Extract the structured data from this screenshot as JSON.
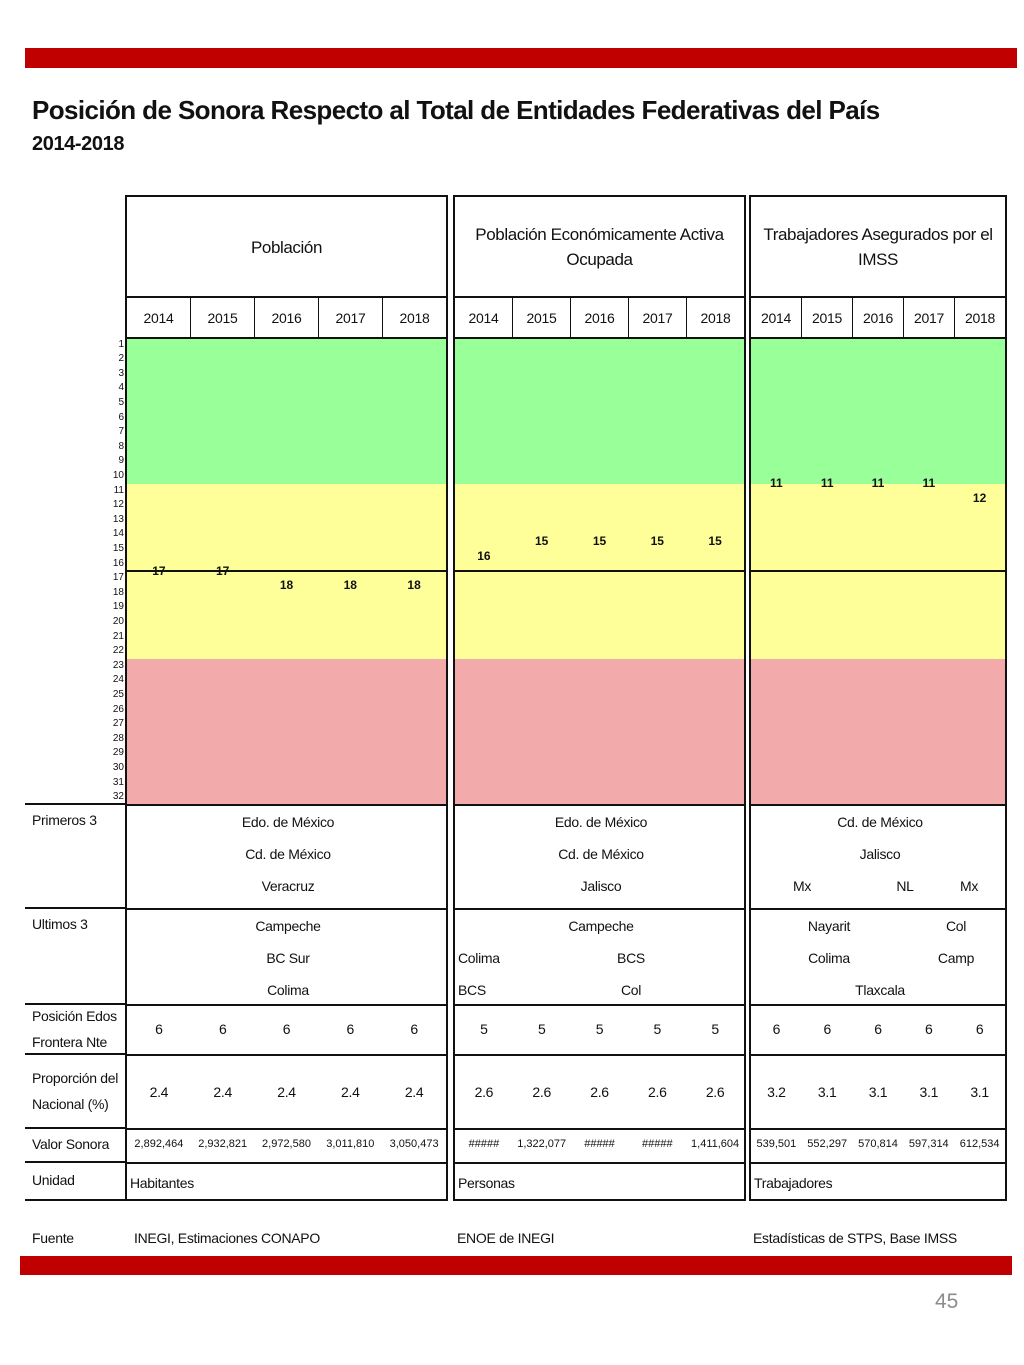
{
  "page": {
    "title": "Posición de Sonora Respecto al Total de Entidades Federativas del País",
    "subtitle": "2014-2018",
    "page_number": "45",
    "colors": {
      "brand_bar": "#c00000",
      "top_band": "#99ff99",
      "middle_band": "#ffff99",
      "bottom_band": "#f2aaaa"
    }
  },
  "ranks": [
    "1",
    "2",
    "3",
    "4",
    "5",
    "6",
    "7",
    "8",
    "9",
    "10",
    "11",
    "12",
    "13",
    "14",
    "15",
    "16",
    "17",
    "18",
    "19",
    "20",
    "21",
    "22",
    "23",
    "24",
    "25",
    "26",
    "27",
    "28",
    "29",
    "30",
    "31",
    "32"
  ],
  "row_labels": {
    "primeros": "Primeros 3",
    "ultimos": "Ultimos 3",
    "posicion_line1": "Posición Edos",
    "posicion_line2": "Frontera Nte",
    "proporcion_line1": "Proporción del",
    "proporcion_line2": "Nacional (%)",
    "valor": "Valor Sonora",
    "unidad": "Unidad",
    "fuente": "Fuente"
  },
  "panels": [
    {
      "header": "Población",
      "years": [
        "2014",
        "2015",
        "2016",
        "2017",
        "2018"
      ],
      "ranks": [
        17,
        17,
        18,
        18,
        18
      ],
      "primeros": [
        "Edo. de México",
        "Cd. de México",
        "Veracruz"
      ],
      "ultimos": [
        "Campeche",
        "BC Sur",
        "Colima"
      ],
      "posicion": [
        "6",
        "6",
        "6",
        "6",
        "6"
      ],
      "proporcion": [
        "2.4",
        "2.4",
        "2.4",
        "2.4",
        "2.4"
      ],
      "valor": [
        "2,892,464",
        "2,932,821",
        "2,972,580",
        "3,011,810",
        "3,050,473"
      ],
      "unidad": "Habitantes",
      "fuente": "INEGI, Estimaciones CONAPO"
    },
    {
      "header": "Población Económicamente Activa Ocupada",
      "years": [
        "2014",
        "2015",
        "2016",
        "2017",
        "2018"
      ],
      "ranks": [
        16,
        15,
        15,
        15,
        15
      ],
      "primeros": [
        "Edo. de México",
        "Cd. de México",
        "Jalisco"
      ],
      "ultimos_line1": "Campeche",
      "ultimos_line2": [
        "Colima",
        "BCS"
      ],
      "ultimos_line3": [
        "BCS",
        "Col"
      ],
      "posicion": [
        "5",
        "5",
        "5",
        "5",
        "5"
      ],
      "proporcion": [
        "2.6",
        "2.6",
        "2.6",
        "2.6",
        "2.6"
      ],
      "valor": [
        "#####",
        "1,322,077",
        "#####",
        "#####",
        "1,411,604"
      ],
      "unidad": "Personas",
      "fuente": "ENOE de INEGI"
    },
    {
      "header": "Trabajadores Asegurados por el IMSS",
      "years": [
        "2014",
        "2015",
        "2016",
        "2017",
        "2018"
      ],
      "ranks": [
        11,
        11,
        11,
        11,
        12
      ],
      "primeros_line1": "Cd. de México",
      "primeros_line2": "Jalisco",
      "primeros_line3": [
        "Mx",
        "NL",
        "Mx"
      ],
      "ultimos_line1": [
        "Nayarit",
        "Col"
      ],
      "ultimos_line2": [
        "Colima",
        "Camp"
      ],
      "ultimos_line3": "Tlaxcala",
      "posicion": [
        "6",
        "6",
        "6",
        "6",
        "6"
      ],
      "proporcion": [
        "3.2",
        "3.1",
        "3.1",
        "3.1",
        "3.1"
      ],
      "valor": [
        "539,501",
        "552,297",
        "570,814",
        "597,314",
        "612,534"
      ],
      "unidad": "Trabajadores",
      "fuente": "Estadísticas de STPS, Base IMSS"
    }
  ]
}
